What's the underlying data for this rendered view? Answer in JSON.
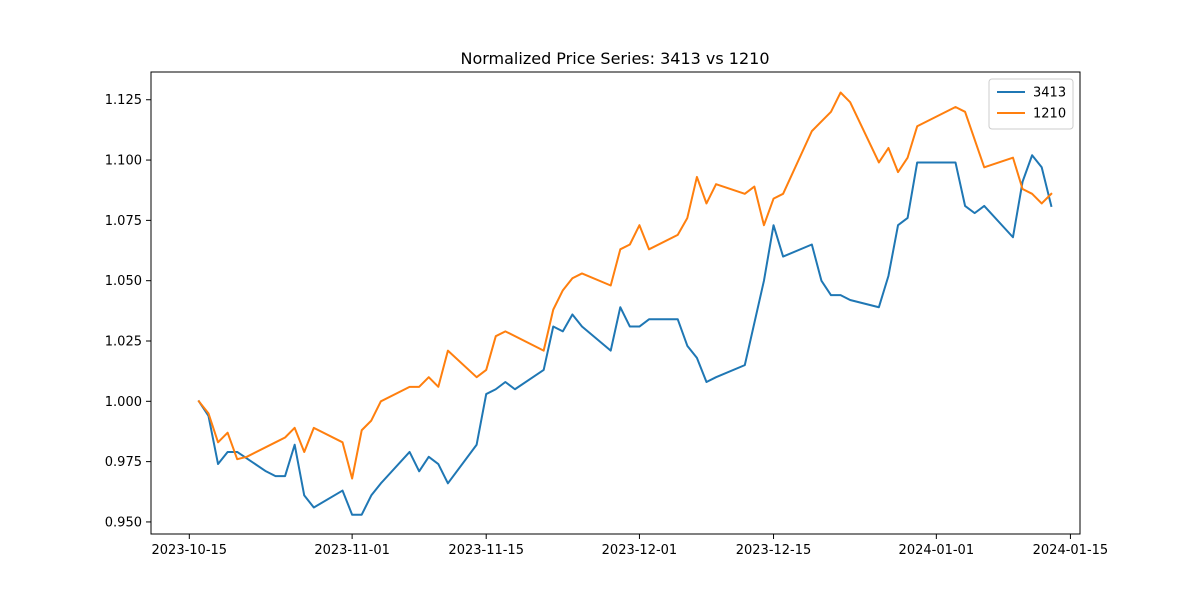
{
  "chart_data": {
    "type": "line",
    "title": "Normalized Price Series: 3413 vs 1210",
    "xlabel": "",
    "ylabel": "",
    "x_tick_labels": [
      "2023-10-15",
      "2023-11-01",
      "2023-11-15",
      "2023-12-01",
      "2023-12-15",
      "2024-01-01",
      "2024-01-15"
    ],
    "x_ticks": [
      "2023-10-15",
      "2023-11-01",
      "2023-11-15",
      "2023-12-01",
      "2023-12-15",
      "2024-01-01",
      "2024-01-15"
    ],
    "y_tick_labels": [
      "0.950",
      "0.975",
      "1.000",
      "1.025",
      "1.050",
      "1.075",
      "1.100",
      "1.125"
    ],
    "y_ticks": [
      0.95,
      0.975,
      1.0,
      1.025,
      1.05,
      1.075,
      1.1,
      1.125
    ],
    "xlim": [
      "2023-10-11",
      "2024-01-16"
    ],
    "ylim": [
      0.945,
      1.1365
    ],
    "grid": false,
    "legend_position": "top-right",
    "series": [
      {
        "name": "3413",
        "color": "#1f77b4",
        "points": [
          [
            "2023-10-16",
            1.0
          ],
          [
            "2023-10-17",
            0.994
          ],
          [
            "2023-10-18",
            0.974
          ],
          [
            "2023-10-19",
            0.979
          ],
          [
            "2023-10-20",
            0.979
          ],
          [
            "2023-10-23",
            0.971
          ],
          [
            "2023-10-24",
            0.969
          ],
          [
            "2023-10-25",
            0.969
          ],
          [
            "2023-10-26",
            0.982
          ],
          [
            "2023-10-27",
            0.961
          ],
          [
            "2023-10-28",
            0.956
          ],
          [
            "2023-10-31",
            0.963
          ],
          [
            "2023-11-01",
            0.953
          ],
          [
            "2023-11-02",
            0.953
          ],
          [
            "2023-11-03",
            0.961
          ],
          [
            "2023-11-04",
            0.966
          ],
          [
            "2023-11-07",
            0.979
          ],
          [
            "2023-11-08",
            0.971
          ],
          [
            "2023-11-09",
            0.977
          ],
          [
            "2023-11-10",
            0.974
          ],
          [
            "2023-11-11",
            0.966
          ],
          [
            "2023-11-14",
            0.982
          ],
          [
            "2023-11-15",
            1.003
          ],
          [
            "2023-11-16",
            1.005
          ],
          [
            "2023-11-17",
            1.008
          ],
          [
            "2023-11-18",
            1.005
          ],
          [
            "2023-11-21",
            1.013
          ],
          [
            "2023-11-22",
            1.031
          ],
          [
            "2023-11-23",
            1.029
          ],
          [
            "2023-11-24",
            1.036
          ],
          [
            "2023-11-25",
            1.031
          ],
          [
            "2023-11-28",
            1.021
          ],
          [
            "2023-11-29",
            1.039
          ],
          [
            "2023-11-30",
            1.031
          ],
          [
            "2023-12-01",
            1.031
          ],
          [
            "2023-12-02",
            1.034
          ],
          [
            "2023-12-05",
            1.034
          ],
          [
            "2023-12-06",
            1.023
          ],
          [
            "2023-12-07",
            1.018
          ],
          [
            "2023-12-08",
            1.008
          ],
          [
            "2023-12-09",
            1.01
          ],
          [
            "2023-12-12",
            1.015
          ],
          [
            "2023-12-14",
            1.05
          ],
          [
            "2023-12-15",
            1.073
          ],
          [
            "2023-12-16",
            1.06
          ],
          [
            "2023-12-19",
            1.065
          ],
          [
            "2023-12-20",
            1.05
          ],
          [
            "2023-12-21",
            1.044
          ],
          [
            "2023-12-22",
            1.044
          ],
          [
            "2023-12-23",
            1.042
          ],
          [
            "2023-12-26",
            1.039
          ],
          [
            "2023-12-27",
            1.052
          ],
          [
            "2023-12-28",
            1.073
          ],
          [
            "2023-12-29",
            1.076
          ],
          [
            "2023-12-30",
            1.099
          ],
          [
            "2024-01-03",
            1.099
          ],
          [
            "2024-01-04",
            1.081
          ],
          [
            "2024-01-05",
            1.078
          ],
          [
            "2024-01-06",
            1.081
          ],
          [
            "2024-01-09",
            1.068
          ],
          [
            "2024-01-10",
            1.091
          ],
          [
            "2024-01-11",
            1.102
          ],
          [
            "2024-01-12",
            1.097
          ],
          [
            "2024-01-13",
            1.081
          ]
        ]
      },
      {
        "name": "1210",
        "color": "#ff7f0e",
        "points": [
          [
            "2023-10-16",
            1.0
          ],
          [
            "2023-10-17",
            0.995
          ],
          [
            "2023-10-18",
            0.983
          ],
          [
            "2023-10-19",
            0.987
          ],
          [
            "2023-10-20",
            0.976
          ],
          [
            "2023-10-21",
            0.977
          ],
          [
            "2023-10-24",
            0.983
          ],
          [
            "2023-10-25",
            0.985
          ],
          [
            "2023-10-26",
            0.989
          ],
          [
            "2023-10-27",
            0.979
          ],
          [
            "2023-10-28",
            0.989
          ],
          [
            "2023-10-31",
            0.983
          ],
          [
            "2023-11-01",
            0.968
          ],
          [
            "2023-11-02",
            0.988
          ],
          [
            "2023-11-03",
            0.992
          ],
          [
            "2023-11-04",
            1.0
          ],
          [
            "2023-11-07",
            1.006
          ],
          [
            "2023-11-08",
            1.006
          ],
          [
            "2023-11-09",
            1.01
          ],
          [
            "2023-11-10",
            1.006
          ],
          [
            "2023-11-11",
            1.021
          ],
          [
            "2023-11-14",
            1.01
          ],
          [
            "2023-11-15",
            1.013
          ],
          [
            "2023-11-16",
            1.027
          ],
          [
            "2023-11-17",
            1.029
          ],
          [
            "2023-11-21",
            1.021
          ],
          [
            "2023-11-22",
            1.038
          ],
          [
            "2023-11-23",
            1.046
          ],
          [
            "2023-11-24",
            1.051
          ],
          [
            "2023-11-25",
            1.053
          ],
          [
            "2023-11-28",
            1.048
          ],
          [
            "2023-11-29",
            1.063
          ],
          [
            "2023-11-30",
            1.065
          ],
          [
            "2023-12-01",
            1.073
          ],
          [
            "2023-12-02",
            1.063
          ],
          [
            "2023-12-05",
            1.069
          ],
          [
            "2023-12-06",
            1.076
          ],
          [
            "2023-12-07",
            1.093
          ],
          [
            "2023-12-08",
            1.082
          ],
          [
            "2023-12-09",
            1.09
          ],
          [
            "2023-12-12",
            1.086
          ],
          [
            "2023-12-13",
            1.089
          ],
          [
            "2023-12-14",
            1.073
          ],
          [
            "2023-12-15",
            1.084
          ],
          [
            "2023-12-16",
            1.086
          ],
          [
            "2023-12-19",
            1.112
          ],
          [
            "2023-12-21",
            1.12
          ],
          [
            "2023-12-22",
            1.128
          ],
          [
            "2023-12-23",
            1.124
          ],
          [
            "2023-12-26",
            1.099
          ],
          [
            "2023-12-27",
            1.105
          ],
          [
            "2023-12-28",
            1.095
          ],
          [
            "2023-12-29",
            1.101
          ],
          [
            "2023-12-30",
            1.114
          ],
          [
            "2024-01-03",
            1.122
          ],
          [
            "2024-01-04",
            1.12
          ],
          [
            "2024-01-06",
            1.097
          ],
          [
            "2024-01-09",
            1.101
          ],
          [
            "2024-01-10",
            1.088
          ],
          [
            "2024-01-11",
            1.086
          ],
          [
            "2024-01-12",
            1.082
          ],
          [
            "2024-01-13",
            1.086
          ]
        ]
      }
    ]
  }
}
